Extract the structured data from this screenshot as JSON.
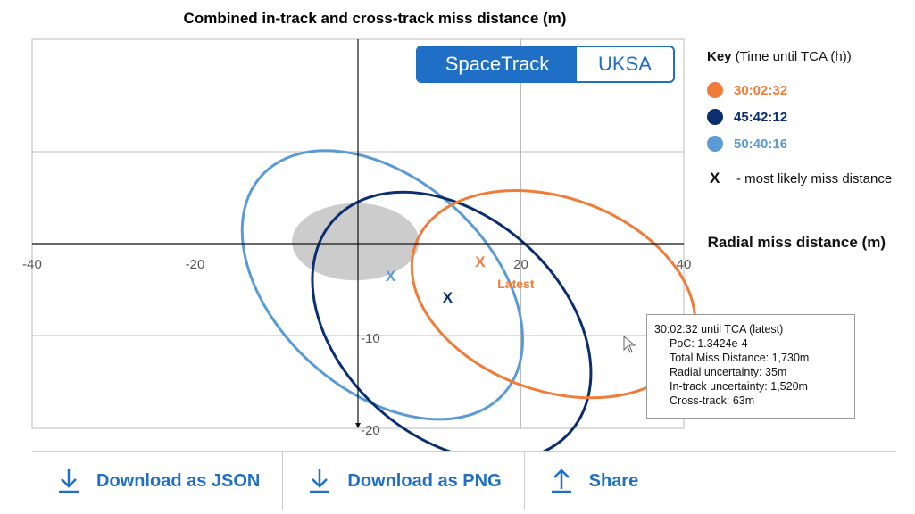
{
  "chart_data": {
    "type": "scatter",
    "title": "Combined in-track and cross-track miss distance (m)",
    "xlabel": "Radial miss distance (m)",
    "ylabel": "",
    "xlim": [
      -40,
      40
    ],
    "ylim": [
      -20,
      20
    ],
    "x_ticks": [
      "-40",
      "-20",
      "20",
      "40"
    ],
    "y_ticks": [
      "-10",
      "-20"
    ],
    "grid": true,
    "legend_position": "right",
    "shaded_region": {
      "cx": -0.3,
      "cy": 0.2,
      "rx": 7.8,
      "ry": 4.2,
      "color": "#cccccc"
    },
    "series": [
      {
        "name": "30:02:32",
        "color": "#f07c3a",
        "ellipse": {
          "cx": 24,
          "cy": -5.5,
          "rx": 18,
          "ry": 10.5,
          "angle_deg": 20
        },
        "most_likely": {
          "x": 15,
          "y": -2.5
        },
        "label": "Latest"
      },
      {
        "name": "45:42:12",
        "color": "#0b2f6e",
        "ellipse": {
          "cx": 11.5,
          "cy": -9,
          "rx": 19.5,
          "ry": 12,
          "angle_deg": 42
        },
        "most_likely": {
          "x": 11,
          "y": -6.4
        }
      },
      {
        "name": "50:40:16",
        "color": "#5b9bd5",
        "ellipse": {
          "cx": 3,
          "cy": -4.5,
          "rx": 20,
          "ry": 11.5,
          "angle_deg": 42
        },
        "most_likely": {
          "x": 4,
          "y": -4.1
        }
      }
    ]
  },
  "toggle": {
    "active": "SpaceTrack",
    "inactive": "UKSA"
  },
  "key": {
    "title_bold": "Key",
    "title_rest": "(Time until TCA (h))",
    "items": [
      {
        "label": "30:02:32",
        "color": "#f07c3a"
      },
      {
        "label": "45:42:12",
        "color": "#0b2f6e"
      },
      {
        "label": "50:40:16",
        "color": "#5b9bd5"
      }
    ],
    "x_mark": "X",
    "x_desc": "- most likely miss distance"
  },
  "marker_symbol": "X",
  "tooltip": {
    "head": "30:02:32 until TCA (latest)",
    "rows": [
      "PoC: 1.3424e-4",
      "Total Miss Distance: 1,730m",
      "Radial uncertainty: 35m",
      "In-track uncertainty: 1,520m",
      "Cross-track: 63m"
    ]
  },
  "actions": {
    "download_json": "Download as JSON",
    "download_png": "Download as PNG",
    "share": "Share"
  },
  "colors": {
    "accent": "#1f6fc6"
  }
}
